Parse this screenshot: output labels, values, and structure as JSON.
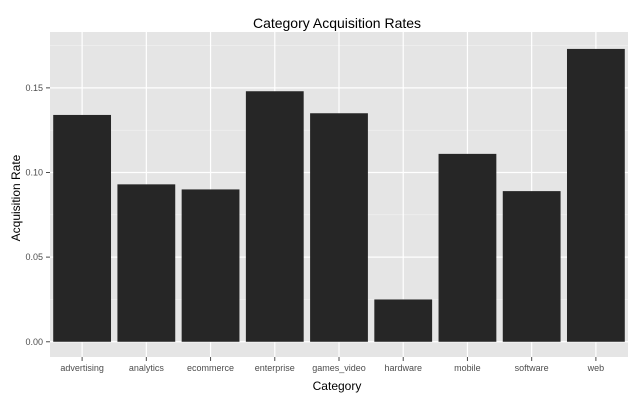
{
  "chart_data": {
    "type": "bar",
    "title": "Category Acquisition Rates",
    "xlabel": "Category",
    "ylabel": "Acquisition Rate",
    "categories": [
      "advertising",
      "analytics",
      "ecommerce",
      "enterprise",
      "games_video",
      "hardware",
      "mobile",
      "software",
      "web"
    ],
    "values": [
      0.134,
      0.093,
      0.09,
      0.148,
      0.135,
      0.025,
      0.111,
      0.089,
      0.173
    ],
    "ylim": [
      -0.009,
      0.183
    ],
    "yticks": [
      "0.00",
      "0.05",
      "0.10",
      "0.15"
    ],
    "grid": true,
    "legend": "none",
    "colors": {
      "bar": "#262626",
      "panel": "#e5e5e5",
      "grid_major": "#ffffff",
      "grid_minor": "#f2f2f2",
      "tick": "#4d4d4d",
      "text": "#000000"
    }
  }
}
